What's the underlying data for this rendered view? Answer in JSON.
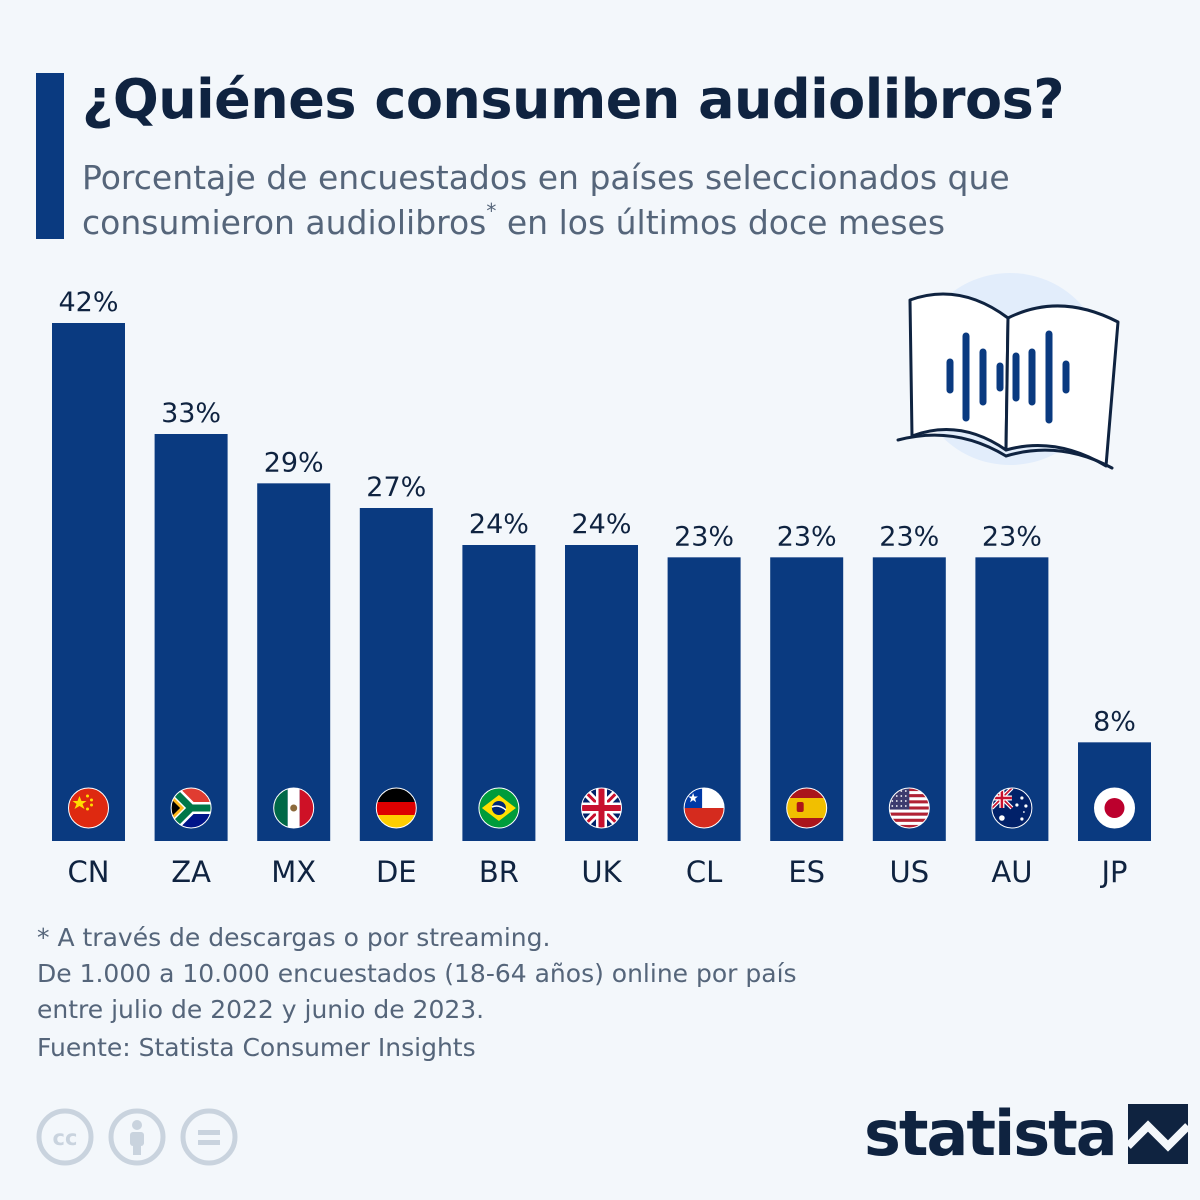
{
  "header": {
    "title": "¿Quiénes consumen audiolibros?",
    "subtitle": "Porcentaje de encuestados en países seleccionados que consumieron audiolibros",
    "subtitle_asterisk": "*",
    "subtitle_end": "en los últimos doce meses"
  },
  "chart_data": {
    "type": "bar",
    "categories": [
      "CN",
      "ZA",
      "MX",
      "DE",
      "BR",
      "UK",
      "CL",
      "ES",
      "US",
      "AU",
      "JP"
    ],
    "values": [
      42,
      33,
      29,
      27,
      24,
      24,
      23,
      23,
      23,
      23,
      8
    ],
    "value_labels": [
      "42%",
      "33%",
      "29%",
      "27%",
      "24%",
      "24%",
      "23%",
      "23%",
      "23%",
      "23%",
      "8%"
    ],
    "unit": "%",
    "ylim": [
      0,
      42
    ],
    "title": "¿Quiénes consumen audiolibros?",
    "xlabel": "",
    "ylabel": "",
    "bar_color": "#0a3a80"
  },
  "icons": {
    "illustration": "open-book-audio-icon",
    "flags": [
      "china-flag-icon",
      "south-africa-flag-icon",
      "mexico-flag-icon",
      "germany-flag-icon",
      "brazil-flag-icon",
      "uk-flag-icon",
      "chile-flag-icon",
      "spain-flag-icon",
      "usa-flag-icon",
      "australia-flag-icon",
      "japan-flag-icon"
    ],
    "license": [
      "creative-commons-icon",
      "attribution-icon",
      "no-derivatives-icon"
    ]
  },
  "footer": {
    "note_1": "* A través de descargas o por streaming.",
    "note_2": "De 1.000 a 10.000 encuestados (18-64 años) online por país",
    "note_3": "entre julio de 2022 y junio de 2023.",
    "source": "Fuente: Statista Consumer Insights",
    "brand": "statista"
  },
  "colors": {
    "bar": "#0a3a80",
    "title": "#0f2340",
    "text_muted": "#55657a",
    "background": "#f3f7fb"
  }
}
